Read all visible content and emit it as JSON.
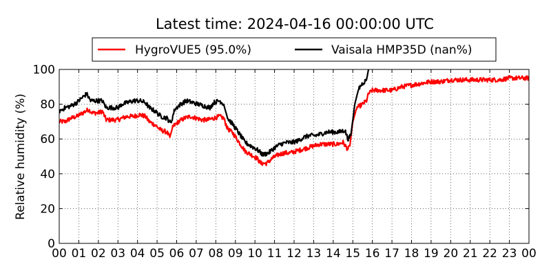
{
  "chart_data": {
    "type": "line",
    "title": "Latest time: 2024-04-16 00:00:00 UTC",
    "ylabel": "Relative humidity (%)",
    "xlabel": "",
    "xlim": [
      0,
      24
    ],
    "ylim": [
      0,
      100
    ],
    "yticks": [
      0,
      20,
      40,
      60,
      80,
      100
    ],
    "xticks": [
      "00",
      "01",
      "02",
      "03",
      "04",
      "05",
      "06",
      "07",
      "08",
      "09",
      "10",
      "11",
      "12",
      "13",
      "14",
      "15",
      "16",
      "17",
      "18",
      "19",
      "20",
      "21",
      "22",
      "23",
      "00"
    ],
    "grid": true,
    "legend_position": "top",
    "series": [
      {
        "name": "HygroVUE5 (95.0%)",
        "color": "#ff0000",
        "points": [
          [
            0.0,
            70
          ],
          [
            0.3,
            70
          ],
          [
            0.6,
            72
          ],
          [
            0.9,
            73
          ],
          [
            1.2,
            75
          ],
          [
            1.5,
            77
          ],
          [
            1.7,
            75
          ],
          [
            2.0,
            75
          ],
          [
            2.2,
            76
          ],
          [
            2.4,
            71
          ],
          [
            2.7,
            71
          ],
          [
            3.0,
            71
          ],
          [
            3.2,
            72
          ],
          [
            3.5,
            73
          ],
          [
            3.8,
            73
          ],
          [
            4.1,
            74
          ],
          [
            4.4,
            73
          ],
          [
            4.6,
            70
          ],
          [
            4.9,
            68
          ],
          [
            5.2,
            65
          ],
          [
            5.5,
            64
          ],
          [
            5.65,
            61
          ],
          [
            5.8,
            67
          ],
          [
            6.1,
            70
          ],
          [
            6.4,
            72
          ],
          [
            6.7,
            73
          ],
          [
            7.0,
            72
          ],
          [
            7.3,
            71
          ],
          [
            7.6,
            71
          ],
          [
            7.9,
            72
          ],
          [
            8.2,
            73
          ],
          [
            8.4,
            72
          ],
          [
            8.6,
            66
          ],
          [
            8.9,
            63
          ],
          [
            9.2,
            58
          ],
          [
            9.5,
            53
          ],
          [
            9.8,
            51
          ],
          [
            10.1,
            49
          ],
          [
            10.3,
            46
          ],
          [
            10.6,
            46
          ],
          [
            10.9,
            49
          ],
          [
            11.2,
            51
          ],
          [
            11.5,
            52
          ],
          [
            11.8,
            52
          ],
          [
            12.1,
            53
          ],
          [
            12.4,
            54
          ],
          [
            12.7,
            55
          ],
          [
            13.0,
            56
          ],
          [
            13.3,
            57
          ],
          [
            13.6,
            57
          ],
          [
            13.9,
            57
          ],
          [
            14.2,
            57
          ],
          [
            14.5,
            58
          ],
          [
            14.75,
            54
          ],
          [
            14.85,
            56
          ],
          [
            15.0,
            70
          ],
          [
            15.2,
            78
          ],
          [
            15.5,
            80
          ],
          [
            15.7,
            82
          ],
          [
            15.8,
            86
          ],
          [
            16.0,
            88
          ],
          [
            16.5,
            88
          ],
          [
            17.0,
            88
          ],
          [
            17.5,
            90
          ],
          [
            18.0,
            91
          ],
          [
            18.5,
            92
          ],
          [
            19.0,
            93
          ],
          [
            19.5,
            93
          ],
          [
            20.0,
            94
          ],
          [
            21.0,
            94
          ],
          [
            22.0,
            94
          ],
          [
            22.5,
            94
          ],
          [
            23.0,
            95
          ],
          [
            24.0,
            95
          ]
        ]
      },
      {
        "name": "Vaisala HMP35D (nan%)",
        "color": "#000000",
        "points": [
          [
            0.0,
            76
          ],
          [
            0.3,
            78
          ],
          [
            0.6,
            79
          ],
          [
            0.9,
            81
          ],
          [
            1.2,
            84
          ],
          [
            1.4,
            86
          ],
          [
            1.6,
            82
          ],
          [
            1.9,
            82
          ],
          [
            2.2,
            82
          ],
          [
            2.4,
            78
          ],
          [
            2.7,
            78
          ],
          [
            3.0,
            78
          ],
          [
            3.2,
            80
          ],
          [
            3.5,
            81
          ],
          [
            3.8,
            82
          ],
          [
            4.1,
            82
          ],
          [
            4.4,
            81
          ],
          [
            4.6,
            78
          ],
          [
            4.9,
            76
          ],
          [
            5.2,
            73
          ],
          [
            5.5,
            72
          ],
          [
            5.7,
            69
          ],
          [
            5.9,
            77
          ],
          [
            6.2,
            80
          ],
          [
            6.5,
            82
          ],
          [
            6.8,
            81
          ],
          [
            7.1,
            80
          ],
          [
            7.4,
            79
          ],
          [
            7.7,
            78
          ],
          [
            7.9,
            81
          ],
          [
            8.2,
            82
          ],
          [
            8.4,
            80
          ],
          [
            8.6,
            72
          ],
          [
            8.9,
            68
          ],
          [
            9.2,
            63
          ],
          [
            9.5,
            58
          ],
          [
            9.8,
            56
          ],
          [
            10.1,
            54
          ],
          [
            10.4,
            51
          ],
          [
            10.7,
            52
          ],
          [
            11.0,
            55
          ],
          [
            11.3,
            57
          ],
          [
            11.6,
            58
          ],
          [
            11.9,
            58
          ],
          [
            12.2,
            59
          ],
          [
            12.5,
            61
          ],
          [
            12.8,
            62
          ],
          [
            13.1,
            62
          ],
          [
            13.4,
            63
          ],
          [
            13.7,
            64
          ],
          [
            14.0,
            64
          ],
          [
            14.3,
            64
          ],
          [
            14.6,
            65
          ],
          [
            14.75,
            60
          ],
          [
            14.9,
            62
          ],
          [
            15.1,
            80
          ],
          [
            15.3,
            89
          ],
          [
            15.5,
            92
          ],
          [
            15.7,
            94
          ],
          [
            15.8,
            100
          ]
        ]
      }
    ]
  }
}
